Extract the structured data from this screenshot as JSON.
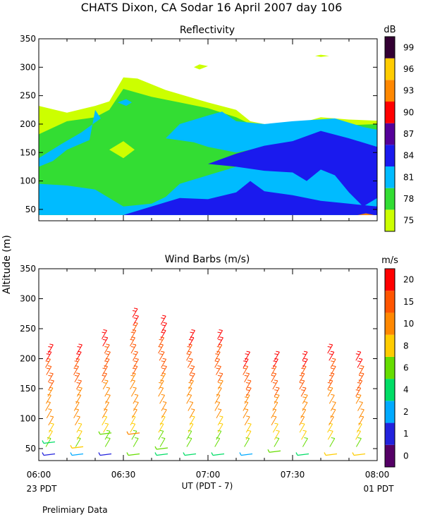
{
  "page_title": "CHATS Dixon, CA  Sodar  16 April 2007  day 106",
  "footnote": "Prelimiary Data",
  "y_axis_label": "Altitude (m)",
  "x_axis_label": "UT  (PDT - 7)",
  "local_time_left": "23 PDT",
  "local_time_right": "01 PDT",
  "colors": {
    "reflectivity_levels": [
      "#ccff00",
      "#33dd33",
      "#00bbff",
      "#1a1aee",
      "#550099",
      "#ff0000",
      "#ff8800",
      "#ffcc00",
      "#330033"
    ],
    "wind_levels": [
      "#550066",
      "#2222dd",
      "#00aaff",
      "#00dd66",
      "#66dd00",
      "#ffcc00",
      "#ff8800",
      "#ff5500",
      "#ff0000"
    ]
  },
  "chart_data": [
    {
      "type": "heatmap",
      "title": "Reflectivity",
      "colorbar_unit": "dB",
      "xlim": [
        "06:00",
        "08:00"
      ],
      "x_ticks": [
        "06:00",
        "06:30",
        "07:00",
        "07:30",
        "08:00"
      ],
      "ylim": [
        30,
        350
      ],
      "y_ticks": [
        50,
        100,
        150,
        200,
        250,
        300,
        350
      ],
      "colorbar_ticks": [
        75,
        78,
        81,
        84,
        87,
        90,
        93,
        96,
        99
      ],
      "grid": false,
      "levels": [
        {
          "value": 75,
          "polygons": [
            [
              [
                "06:00",
                40
              ],
              [
                "06:00",
                232
              ],
              [
                "06:10",
                220
              ],
              [
                "06:20",
                232
              ],
              [
                "06:25",
                240
              ],
              [
                "06:30",
                282
              ],
              [
                "06:35",
                280
              ],
              [
                "06:45",
                260
              ],
              [
                "07:00",
                238
              ],
              [
                "07:10",
                225
              ],
              [
                "07:15",
                205
              ],
              [
                "07:25",
                195
              ],
              [
                "07:30",
                198
              ],
              [
                "07:40",
                212
              ],
              [
                "07:50",
                208
              ],
              [
                "08:00",
                206
              ],
              [
                "08:00",
                40
              ]
            ],
            [
              [
                "06:55",
                300
              ],
              [
                "06:57",
                305
              ],
              [
                "07:00",
                302
              ],
              [
                "06:57",
                296
              ]
            ],
            [
              [
                "07:38",
                320
              ],
              [
                "07:40",
                322
              ],
              [
                "07:43",
                320
              ],
              [
                "07:40",
                318
              ]
            ]
          ]
        },
        {
          "value": 78,
          "polygons": [
            [
              [
                "06:00",
                40
              ],
              [
                "06:00",
                182
              ],
              [
                "06:10",
                205
              ],
              [
                "06:20",
                212
              ],
              [
                "06:25",
                225
              ],
              [
                "06:30",
                262
              ],
              [
                "06:40",
                248
              ],
              [
                "06:50",
                238
              ],
              [
                "07:00",
                228
              ],
              [
                "07:10",
                212
              ],
              [
                "07:15",
                200
              ],
              [
                "07:25",
                190
              ],
              [
                "07:30",
                195
              ],
              [
                "07:40",
                205
              ],
              [
                "07:50",
                198
              ],
              [
                "08:00",
                200
              ],
              [
                "08:00",
                40
              ]
            ]
          ]
        },
        {
          "value": 81,
          "polygons": [
            [
              [
                "06:00",
                40
              ],
              [
                "06:00",
                95
              ],
              [
                "06:10",
                92
              ],
              [
                "06:20",
                85
              ],
              [
                "06:25",
                70
              ],
              [
                "06:30",
                55
              ],
              [
                "06:40",
                60
              ],
              [
                "06:45",
                72
              ],
              [
                "06:50",
                95
              ],
              [
                "07:00",
                110
              ],
              [
                "07:10",
                125
              ],
              [
                "07:15",
                150
              ],
              [
                "07:20",
                155
              ],
              [
                "07:30",
                145
              ],
              [
                "07:40",
                155
              ],
              [
                "07:50",
                150
              ],
              [
                "08:00",
                150
              ],
              [
                "08:00",
                40
              ]
            ],
            [
              [
                "06:00",
                125
              ],
              [
                "06:05",
                135
              ],
              [
                "06:10",
                155
              ],
              [
                "06:18",
                172
              ],
              [
                "06:20",
                225
              ],
              [
                "06:22",
                210
              ],
              [
                "06:15",
                185
              ],
              [
                "06:08",
                165
              ],
              [
                "06:00",
                140
              ]
            ],
            [
              [
                "06:45",
                175
              ],
              [
                "06:50",
                200
              ],
              [
                "07:00",
                215
              ],
              [
                "07:05",
                222
              ],
              [
                "07:10",
                205
              ],
              [
                "07:20",
                200
              ],
              [
                "07:30",
                205
              ],
              [
                "07:45",
                210
              ],
              [
                "07:55",
                195
              ],
              [
                "08:00",
                190
              ],
              [
                "08:00",
                150
              ],
              [
                "07:50",
                152
              ],
              [
                "07:40",
                158
              ],
              [
                "07:30",
                150
              ],
              [
                "07:20",
                160
              ],
              [
                "07:10",
                150
              ],
              [
                "07:00",
                160
              ],
              [
                "06:55",
                168
              ]
            ],
            [
              [
                "06:28",
                238
              ],
              [
                "06:31",
                244
              ],
              [
                "06:33",
                238
              ],
              [
                "06:31",
                232
              ]
            ]
          ]
        },
        {
          "value": 84,
          "polygons": [
            [
              [
                "06:30",
                40
              ],
              [
                "06:40",
                55
              ],
              [
                "06:50",
                70
              ],
              [
                "07:00",
                68
              ],
              [
                "07:10",
                80
              ],
              [
                "07:15",
                100
              ],
              [
                "07:20",
                82
              ],
              [
                "07:30",
                75
              ],
              [
                "07:40",
                65
              ],
              [
                "07:50",
                60
              ],
              [
                "08:00",
                55
              ],
              [
                "08:00",
                40
              ]
            ],
            [
              [
                "07:10",
                148
              ],
              [
                "07:20",
                162
              ],
              [
                "07:30",
                170
              ],
              [
                "07:40",
                188
              ],
              [
                "07:50",
                175
              ],
              [
                "08:00",
                160
              ],
              [
                "08:00",
                70
              ],
              [
                "07:55",
                55
              ],
              [
                "07:50",
                80
              ],
              [
                "07:45",
                110
              ],
              [
                "07:40",
                120
              ],
              [
                "07:35",
                100
              ],
              [
                "07:30",
                115
              ],
              [
                "07:20",
                118
              ],
              [
                "07:10",
                125
              ],
              [
                "07:00",
                130
              ]
            ]
          ]
        },
        {
          "value": 93,
          "polygons": [
            [
              [
                "07:53",
                40
              ],
              [
                "07:56",
                43
              ],
              [
                "07:59",
                40
              ]
            ]
          ]
        }
      ],
      "islands": [
        {
          "value": 75,
          "polygon": [
            [
              "06:25",
              155
            ],
            [
              "06:30",
              170
            ],
            [
              "06:34",
              155
            ],
            [
              "06:30",
              140
            ]
          ]
        }
      ]
    },
    {
      "type": "scatter",
      "title": "Wind Barbs (m/s)",
      "colorbar_unit": "m/s",
      "xlim": [
        "06:00",
        "08:00"
      ],
      "x_ticks": [
        "06:00",
        "06:30",
        "07:00",
        "07:30",
        "08:00"
      ],
      "ylim": [
        30,
        350
      ],
      "y_ticks": [
        50,
        100,
        150,
        200,
        250,
        300,
        350
      ],
      "colorbar_ticks": [
        0,
        1,
        2,
        4,
        6,
        8,
        10,
        15,
        20
      ],
      "grid": false,
      "profiles": [
        {
          "time": "06:04",
          "top": 225,
          "low_speeds": [
            [
              40,
              1
            ],
            [
              60,
              4
            ]
          ]
        },
        {
          "time": "06:14",
          "top": 220,
          "low_speeds": [
            [
              40,
              2
            ],
            [
              52,
              8
            ]
          ]
        },
        {
          "time": "06:24",
          "top": 242,
          "low_speeds": [
            [
              40,
              1
            ],
            [
              75,
              6
            ]
          ]
        },
        {
          "time": "06:34",
          "top": 285,
          "low_speeds": [
            [
              40,
              6
            ],
            [
              75,
              10
            ]
          ]
        },
        {
          "time": "06:44",
          "top": 265,
          "low_speeds": [
            [
              40,
              4
            ],
            [
              50,
              6
            ]
          ]
        },
        {
          "time": "06:54",
          "top": 250,
          "low_speeds": [
            [
              40,
              4
            ]
          ]
        },
        {
          "time": "07:04",
          "top": 250,
          "low_speeds": [
            [
              40,
              4
            ]
          ]
        },
        {
          "time": "07:14",
          "top": 210,
          "low_speeds": [
            [
              40,
              2
            ]
          ]
        },
        {
          "time": "07:24",
          "top": 210,
          "low_speeds": [
            [
              45,
              6
            ]
          ]
        },
        {
          "time": "07:34",
          "top": 210,
          "low_speeds": [
            [
              40,
              4
            ]
          ]
        },
        {
          "time": "07:44",
          "top": 225,
          "low_speeds": [
            [
              40,
              8
            ]
          ]
        },
        {
          "time": "07:54",
          "top": 210,
          "low_speeds": [
            [
              40,
              8
            ]
          ]
        }
      ]
    }
  ]
}
